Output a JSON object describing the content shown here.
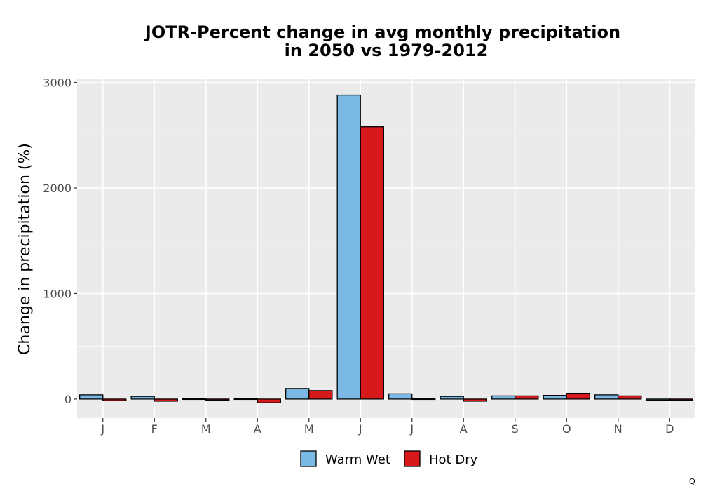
{
  "chart_data": {
    "type": "bar",
    "title_lines": [
      "JOTR-Percent change in avg monthly precipitation",
      "in 2050 vs 1979-2012"
    ],
    "xlabel": "",
    "ylabel": "Change in precipitation (%)",
    "categories": [
      "J",
      "F",
      "M",
      "A",
      "M",
      "J",
      "J",
      "A",
      "S",
      "O",
      "N",
      "D"
    ],
    "series": [
      {
        "name": "Warm Wet",
        "color": "#7ab9e3",
        "values": [
          40,
          25,
          5,
          -5,
          100,
          2880,
          50,
          25,
          30,
          35,
          40,
          -10
        ]
      },
      {
        "name": "Hot Dry",
        "color": "#d7191c",
        "values": [
          -15,
          -20,
          -10,
          -35,
          80,
          2580,
          0,
          -20,
          30,
          55,
          30,
          -10
        ]
      }
    ],
    "ylim": [
      -180,
      3030
    ],
    "yticks": [
      0,
      1000,
      2000,
      3000
    ],
    "ytick_labels": [
      "0",
      "1000",
      "2000",
      "3000"
    ],
    "grid": true,
    "legend_position": "bottom"
  },
  "corner_mark": "Q"
}
